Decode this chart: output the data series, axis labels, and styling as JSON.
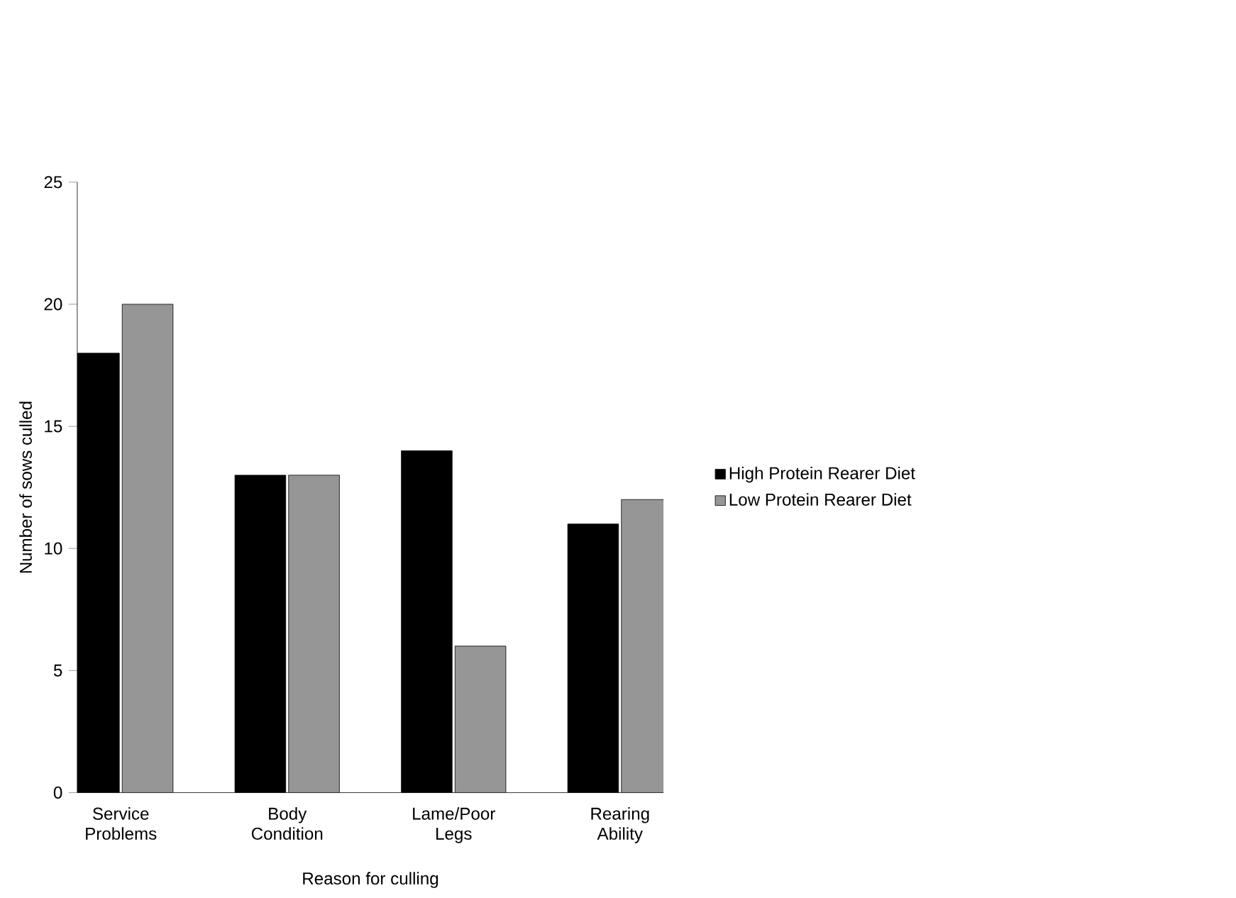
{
  "chart_data": {
    "type": "bar",
    "xlabel": "Reason for culling",
    "ylabel": "Number of sows culled",
    "categories": [
      "Service Problems",
      "Body Condition",
      "Lame/Poor Legs",
      "Rearing Ability"
    ],
    "series": [
      {
        "name": "High Protein Rearer Diet",
        "color": "#000000",
        "values": [
          18,
          13,
          14,
          11
        ]
      },
      {
        "name": "Low Protein Rearer Diet",
        "color": "#969696",
        "values": [
          20,
          13,
          6,
          12
        ]
      }
    ],
    "ylim": [
      0,
      25
    ],
    "yticks": [
      0,
      5,
      10,
      15,
      20,
      25
    ],
    "grid": false,
    "legend": "right"
  }
}
